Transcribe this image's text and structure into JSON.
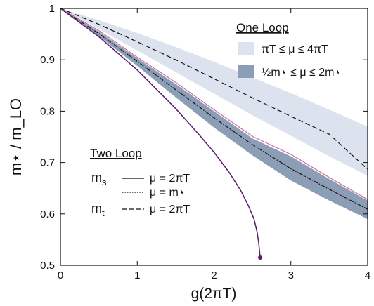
{
  "chart_data": {
    "type": "line",
    "xlabel": "g(2πT)",
    "ylabel": "m⋆ / m_LO",
    "xlim": [
      0,
      4
    ],
    "ylim": [
      0.5,
      1.0
    ],
    "x_ticks": [
      "0",
      "1",
      "2",
      "3",
      "4"
    ],
    "y_ticks": [
      "0.5",
      "0.6",
      "0.7",
      "0.8",
      "0.9",
      "1"
    ],
    "grid": false,
    "legend": {
      "one_loop_title": "One Loop",
      "band1_label": "πT ≤ μ ≤ 4πT",
      "band2_label": "½m⋆ ≤ μ ≤ 2m⋆",
      "two_loop_title": "Two Loop",
      "ms": "m",
      "ms_sub": "s",
      "mt": "m",
      "mt_sub": "t",
      "ms_line1": "μ = 2πT",
      "ms_line2": "μ = m⋆",
      "mt_line": "μ = 2πT"
    },
    "bands": [
      {
        "name": "πT ≤ μ ≤ 4πT",
        "color": "#dde3ee",
        "x": [
          0,
          0.5,
          1,
          1.5,
          2,
          2.5,
          3,
          3.5,
          4
        ],
        "upper": [
          1.0,
          0.977,
          0.952,
          0.925,
          0.896,
          0.866,
          0.835,
          0.803,
          0.77
        ],
        "lower": [
          1.0,
          0.96,
          0.918,
          0.876,
          0.834,
          0.792,
          0.752,
          0.712,
          0.674
        ]
      },
      {
        "name": "½m⋆ ≤ μ ≤ 2m⋆",
        "color": "#8c9db6",
        "x": [
          0,
          0.5,
          1,
          1.5,
          2,
          2.5,
          3,
          3.5,
          4
        ],
        "upper": [
          1.0,
          0.955,
          0.903,
          0.853,
          0.8,
          0.747,
          0.712,
          0.668,
          0.626
        ],
        "lower": [
          1.0,
          0.946,
          0.888,
          0.827,
          0.768,
          0.714,
          0.665,
          0.626,
          0.59
        ]
      }
    ],
    "series": [
      {
        "style": "dashed",
        "color": "#111111",
        "x": [
          0,
          0.5,
          1,
          1.5,
          2,
          2.5,
          3,
          3.5,
          4
        ],
        "y": [
          1.0,
          0.969,
          0.935,
          0.9,
          0.863,
          0.826,
          0.79,
          0.755,
          0.687
        ]
      },
      {
        "style": "dash-dot",
        "color": "#111111",
        "x": [
          0,
          0.5,
          1,
          1.5,
          2,
          2.5,
          3,
          3.5,
          4
        ],
        "y": [
          1.0,
          0.951,
          0.897,
          0.842,
          0.787,
          0.735,
          0.688,
          0.648,
          0.609
        ]
      },
      {
        "style": "solid",
        "color": "#cc6fa0",
        "x": [
          0,
          0.5,
          1,
          1.5,
          2,
          2.5,
          3,
          3.5,
          4
        ],
        "y": [
          1.0,
          0.957,
          0.905,
          0.856,
          0.803,
          0.751,
          0.716,
          0.671,
          0.628
        ]
      },
      {
        "style": "solid",
        "color": "#5a1a6e",
        "x": [
          0,
          0.5,
          1,
          1.5,
          1.8,
          2.0,
          2.2,
          2.35,
          2.45,
          2.52,
          2.56,
          2.58,
          2.6
        ],
        "y": [
          1.0,
          0.945,
          0.88,
          0.805,
          0.755,
          0.72,
          0.68,
          0.645,
          0.615,
          0.59,
          0.565,
          0.545,
          0.515
        ]
      }
    ],
    "endpoint": {
      "x": 2.6,
      "y": 0.515
    }
  }
}
